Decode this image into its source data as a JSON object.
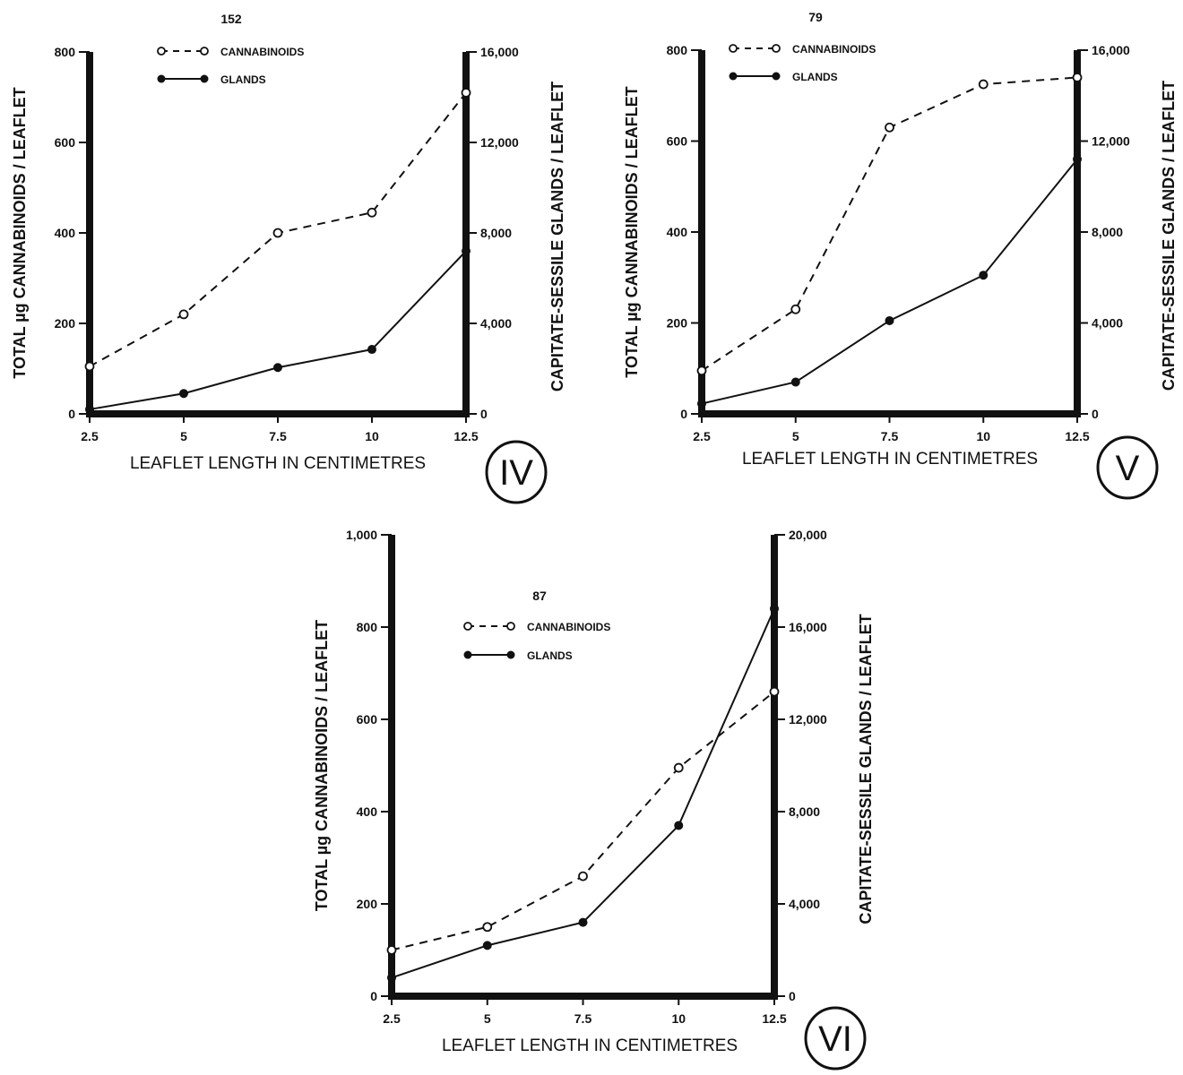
{
  "chart_data": [
    {
      "type": "line",
      "panel_label": "IV",
      "title": "152",
      "x": [
        2.5,
        5,
        7.5,
        10,
        12.5
      ],
      "x_ticks": [
        "2.5",
        "5",
        "7.5",
        "10",
        "12.5"
      ],
      "xlabel": "LEAFLET LENGTH IN CENTIMETRES",
      "ylabel": "TOTAL µg CANNABINOIDS / LEAFLET",
      "y2label": "CAPITATE-SESSILE GLANDS / LEAFLET",
      "ylim": [
        0,
        800
      ],
      "y2lim": [
        0,
        16000
      ],
      "y_ticks": [
        "0",
        "200",
        "400",
        "600",
        "800"
      ],
      "y2_ticks": [
        "0",
        "4,000",
        "8,000",
        "12,000",
        "16,000"
      ],
      "series": [
        {
          "name": "CANNABINOIDS",
          "axis": "left",
          "style": "dashed-open",
          "values": [
            105,
            220,
            400,
            445,
            710
          ]
        },
        {
          "name": "GLANDS",
          "axis": "right",
          "style": "solid-filled",
          "values": [
            200,
            900,
            2050,
            2850,
            7200
          ]
        }
      ]
    },
    {
      "type": "line",
      "panel_label": "V",
      "title": "79",
      "x": [
        2.5,
        5,
        7.5,
        10,
        12.5
      ],
      "x_ticks": [
        "2.5",
        "5",
        "7.5",
        "10",
        "12.5"
      ],
      "xlabel": "LEAFLET LENGTH IN CENTIMETRES",
      "ylabel": "TOTAL µg CANNABINOIDS / LEAFLET",
      "y2label": "CAPITATE-SESSILE GLANDS / LEAFLET",
      "ylim": [
        0,
        800
      ],
      "y2lim": [
        0,
        16000
      ],
      "y_ticks": [
        "0",
        "200",
        "400",
        "600",
        "800"
      ],
      "y2_ticks": [
        "0",
        "4,000",
        "8,000",
        "12,000",
        "16,000"
      ],
      "series": [
        {
          "name": "CANNABINOIDS",
          "axis": "left",
          "style": "dashed-open",
          "values": [
            95,
            230,
            630,
            725,
            740
          ]
        },
        {
          "name": "GLANDS",
          "axis": "right",
          "style": "solid-filled",
          "values": [
            450,
            1400,
            4100,
            6100,
            11200
          ]
        }
      ]
    },
    {
      "type": "line",
      "panel_label": "VI",
      "title": "87",
      "x": [
        2.5,
        5,
        7.5,
        10,
        12.5
      ],
      "x_ticks": [
        "2.5",
        "5",
        "7.5",
        "10",
        "12.5"
      ],
      "xlabel": "LEAFLET LENGTH IN CENTIMETRES",
      "ylabel": "TOTAL µg CANNABINOIDS / LEAFLET",
      "y2label": "CAPITATE-SESSILE GLANDS / LEAFLET",
      "ylim": [
        0,
        1000
      ],
      "y2lim": [
        0,
        20000
      ],
      "y_ticks": [
        "0",
        "200",
        "400",
        "600",
        "800",
        "1,000"
      ],
      "y2_ticks": [
        "0",
        "4,000",
        "8,000",
        "12,000",
        "16,000",
        "20,000"
      ],
      "series": [
        {
          "name": "CANNABINOIDS",
          "axis": "left",
          "style": "dashed-open",
          "values": [
            100,
            150,
            260,
            495,
            660
          ]
        },
        {
          "name": "GLANDS",
          "axis": "right",
          "style": "solid-filled",
          "values": [
            800,
            2200,
            3200,
            7400,
            16800
          ]
        }
      ]
    }
  ],
  "colors": {
    "ink": "#111111",
    "background": "#ffffff"
  }
}
